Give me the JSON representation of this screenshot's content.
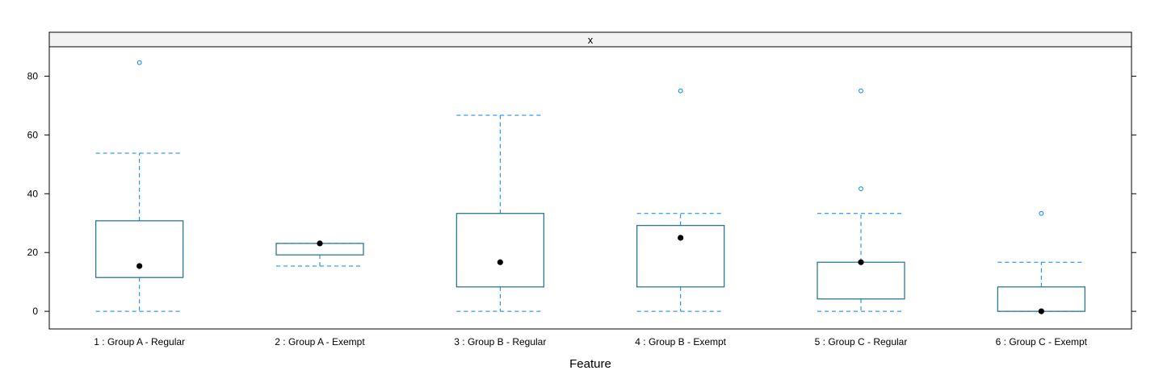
{
  "chart_data": {
    "type": "box",
    "strip_label": "x",
    "xlabel": "Feature",
    "ylabel": "",
    "ylim": [
      -6,
      90
    ],
    "yticks": [
      0,
      20,
      40,
      60,
      80
    ],
    "grid": false,
    "colors": {
      "box": "#0080ff",
      "box_dark": "#1a6e8e",
      "median": "#000000",
      "strip_bg": "#f2f2f2"
    },
    "categories": [
      "1 : Group A - Regular",
      "2 : Group A - Exempt",
      "3 : Group B - Regular",
      "4 : Group B - Exempt",
      "5 : Group C - Regular",
      "6 : Group C - Exempt"
    ],
    "boxes": [
      {
        "whisker_low": 0,
        "q1": 11.5,
        "median": 15.4,
        "q3": 30.8,
        "whisker_high": 53.8,
        "outliers": [
          84.6
        ]
      },
      {
        "whisker_low": 15.4,
        "q1": 19.2,
        "median": 23.1,
        "q3": 23.1,
        "whisker_high": 23.1,
        "outliers": []
      },
      {
        "whisker_low": 0,
        "q1": 8.3,
        "median": 16.7,
        "q3": 33.3,
        "whisker_high": 66.7,
        "outliers": []
      },
      {
        "whisker_low": 0,
        "q1": 8.3,
        "median": 25.0,
        "q3": 29.2,
        "whisker_high": 33.3,
        "outliers": [
          75.0
        ]
      },
      {
        "whisker_low": 0,
        "q1": 4.2,
        "median": 16.7,
        "q3": 16.7,
        "whisker_high": 33.3,
        "outliers": [
          41.7,
          75.0
        ]
      },
      {
        "whisker_low": 0,
        "q1": 0,
        "median": 0,
        "q3": 8.3,
        "whisker_high": 16.7,
        "outliers": [
          33.3
        ]
      }
    ]
  }
}
